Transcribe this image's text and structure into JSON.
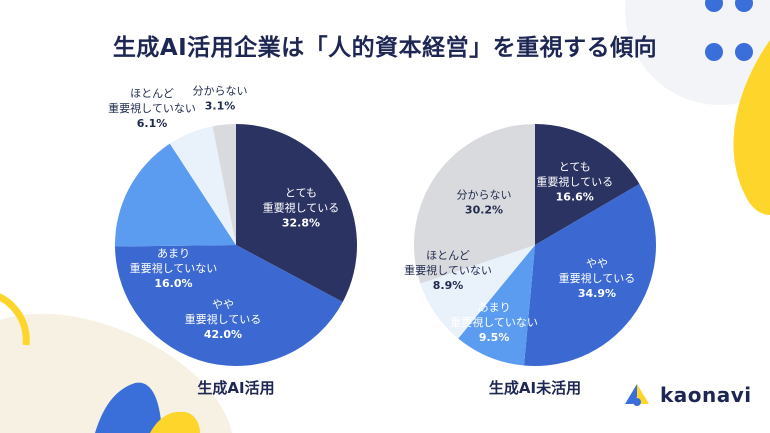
{
  "title": "生成AI活用企業は「人的資本経営」を重視する傾向",
  "brand": {
    "name": "kaonavi"
  },
  "colors": {
    "navy": "#2b3362",
    "blue": "#3c69d1",
    "lightblue": "#5b9cf0",
    "paleblue": "#e9f1fb",
    "gray": "#d9dade",
    "yellow": "#fdd52b",
    "bgblue": "#3a6fd9"
  },
  "chart_data": [
    {
      "type": "pie",
      "caption": "生成AI活用",
      "slices": [
        {
          "label": [
            "とても",
            "重要視している"
          ],
          "value": 32.8,
          "display": "32.8%",
          "color": "#2b3362",
          "text_color": "#ffffff",
          "outside": false
        },
        {
          "label": [
            "やや",
            "重要視している"
          ],
          "value": 42.0,
          "display": "42.0%",
          "color": "#3c69d1",
          "text_color": "#ffffff",
          "outside": false
        },
        {
          "label": [
            "あまり",
            "重要視していない"
          ],
          "value": 16.0,
          "display": "16.0%",
          "color": "#5b9cf0",
          "text_color": "#ffffff",
          "outside": false
        },
        {
          "label": [
            "ほとんど",
            "重要視していない"
          ],
          "value": 6.1,
          "display": "6.1%",
          "color": "#e9f1fb",
          "text_color": "#1f2a4d",
          "outside": true
        },
        {
          "label": [
            "分からない"
          ],
          "value": 3.1,
          "display": "3.1%",
          "color": "#d9dade",
          "text_color": "#1f2a4d",
          "outside": true
        }
      ]
    },
    {
      "type": "pie",
      "caption": "生成AI未活用",
      "slices": [
        {
          "label": [
            "とても",
            "重要視している"
          ],
          "value": 16.6,
          "display": "16.6%",
          "color": "#2b3362",
          "text_color": "#ffffff",
          "outside": false
        },
        {
          "label": [
            "やや",
            "重要視している"
          ],
          "value": 34.9,
          "display": "34.9%",
          "color": "#3c69d1",
          "text_color": "#ffffff",
          "outside": false
        },
        {
          "label": [
            "あまり",
            "重要視していない"
          ],
          "value": 9.5,
          "display": "9.5%",
          "color": "#5b9cf0",
          "text_color": "#ffffff",
          "outside": false
        },
        {
          "label": [
            "ほとんど",
            "重要視していない"
          ],
          "value": 8.9,
          "display": "8.9%",
          "color": "#e9f1fb",
          "text_color": "#1f2a4d",
          "outside": false
        },
        {
          "label": [
            "分からない"
          ],
          "value": 30.2,
          "display": "30.2%",
          "color": "#d9dade",
          "text_color": "#1f2a4d",
          "outside": false
        }
      ]
    }
  ]
}
